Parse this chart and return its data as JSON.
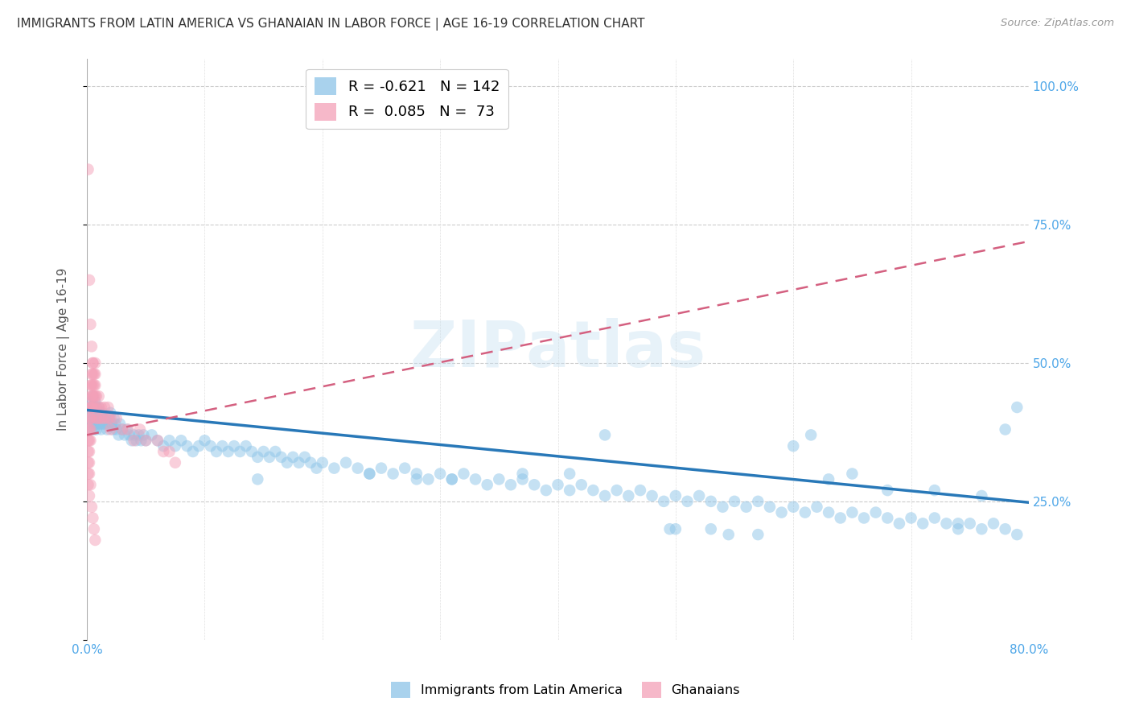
{
  "title": "IMMIGRANTS FROM LATIN AMERICA VS GHANAIAN IN LABOR FORCE | AGE 16-19 CORRELATION CHART",
  "source": "Source: ZipAtlas.com",
  "ylabel": "In Labor Force | Age 16-19",
  "xlim": [
    0.0,
    0.8
  ],
  "ylim": [
    0.0,
    1.05
  ],
  "legend1_label": "Immigrants from Latin America",
  "legend2_label": "Ghanaians",
  "legend1_R": "-0.621",
  "legend1_N": "142",
  "legend2_R": " 0.085",
  "legend2_N": " 73",
  "blue_color": "#8dc4e8",
  "pink_color": "#f4a0b8",
  "blue_line_color": "#2878b8",
  "pink_line_color": "#d46080",
  "blue_trend_x": [
    0.0,
    0.8
  ],
  "blue_trend_y": [
    0.415,
    0.248
  ],
  "pink_trend_x": [
    0.0,
    0.8
  ],
  "pink_trend_y": [
    0.37,
    0.72
  ],
  "blue_x": [
    0.002,
    0.003,
    0.003,
    0.004,
    0.004,
    0.005,
    0.005,
    0.005,
    0.006,
    0.006,
    0.007,
    0.007,
    0.007,
    0.008,
    0.008,
    0.008,
    0.009,
    0.009,
    0.01,
    0.01,
    0.011,
    0.011,
    0.012,
    0.012,
    0.013,
    0.013,
    0.014,
    0.015,
    0.016,
    0.017,
    0.018,
    0.019,
    0.02,
    0.021,
    0.022,
    0.023,
    0.024,
    0.025,
    0.027,
    0.028,
    0.03,
    0.032,
    0.034,
    0.036,
    0.038,
    0.04,
    0.042,
    0.044,
    0.046,
    0.048,
    0.05,
    0.055,
    0.06,
    0.065,
    0.07,
    0.075,
    0.08,
    0.085,
    0.09,
    0.095,
    0.1,
    0.105,
    0.11,
    0.115,
    0.12,
    0.125,
    0.13,
    0.135,
    0.14,
    0.145,
    0.15,
    0.155,
    0.16,
    0.165,
    0.17,
    0.175,
    0.18,
    0.185,
    0.19,
    0.195,
    0.2,
    0.21,
    0.22,
    0.23,
    0.24,
    0.25,
    0.26,
    0.27,
    0.28,
    0.29,
    0.3,
    0.31,
    0.32,
    0.33,
    0.34,
    0.35,
    0.36,
    0.37,
    0.38,
    0.39,
    0.4,
    0.41,
    0.42,
    0.43,
    0.44,
    0.45,
    0.46,
    0.47,
    0.48,
    0.49,
    0.5,
    0.51,
    0.52,
    0.53,
    0.54,
    0.55,
    0.56,
    0.57,
    0.58,
    0.59,
    0.6,
    0.61,
    0.62,
    0.63,
    0.64,
    0.65,
    0.66,
    0.67,
    0.68,
    0.69,
    0.7,
    0.71,
    0.72,
    0.73,
    0.74,
    0.75,
    0.76,
    0.77,
    0.78,
    0.79,
    0.495,
    0.545,
    0.615,
    0.79
  ],
  "blue_y": [
    0.42,
    0.4,
    0.38,
    0.43,
    0.41,
    0.39,
    0.44,
    0.42,
    0.4,
    0.38,
    0.43,
    0.41,
    0.39,
    0.42,
    0.4,
    0.38,
    0.41,
    0.39,
    0.42,
    0.4,
    0.41,
    0.39,
    0.4,
    0.38,
    0.41,
    0.39,
    0.4,
    0.39,
    0.4,
    0.38,
    0.39,
    0.4,
    0.41,
    0.39,
    0.38,
    0.4,
    0.39,
    0.38,
    0.37,
    0.39,
    0.38,
    0.37,
    0.38,
    0.37,
    0.36,
    0.37,
    0.36,
    0.37,
    0.36,
    0.37,
    0.36,
    0.37,
    0.36,
    0.35,
    0.36,
    0.35,
    0.36,
    0.35,
    0.34,
    0.35,
    0.36,
    0.35,
    0.34,
    0.35,
    0.34,
    0.35,
    0.34,
    0.35,
    0.34,
    0.33,
    0.34,
    0.33,
    0.34,
    0.33,
    0.32,
    0.33,
    0.32,
    0.33,
    0.32,
    0.31,
    0.32,
    0.31,
    0.32,
    0.31,
    0.3,
    0.31,
    0.3,
    0.31,
    0.3,
    0.29,
    0.3,
    0.29,
    0.3,
    0.29,
    0.28,
    0.29,
    0.28,
    0.29,
    0.28,
    0.27,
    0.28,
    0.27,
    0.28,
    0.27,
    0.26,
    0.27,
    0.26,
    0.27,
    0.26,
    0.25,
    0.26,
    0.25,
    0.26,
    0.25,
    0.24,
    0.25,
    0.24,
    0.25,
    0.24,
    0.23,
    0.24,
    0.23,
    0.24,
    0.23,
    0.22,
    0.23,
    0.22,
    0.23,
    0.22,
    0.21,
    0.22,
    0.21,
    0.22,
    0.21,
    0.2,
    0.21,
    0.2,
    0.21,
    0.2,
    0.19,
    0.2,
    0.19,
    0.37,
    0.42
  ],
  "blue_x_outliers": [
    0.145,
    0.24,
    0.28,
    0.31,
    0.37,
    0.41,
    0.44,
    0.5,
    0.53,
    0.57,
    0.6,
    0.63,
    0.65,
    0.68,
    0.72,
    0.74,
    0.76,
    0.78
  ],
  "blue_y_outliers": [
    0.29,
    0.3,
    0.29,
    0.29,
    0.3,
    0.3,
    0.37,
    0.2,
    0.2,
    0.19,
    0.35,
    0.29,
    0.3,
    0.27,
    0.27,
    0.21,
    0.26,
    0.38
  ],
  "pink_x": [
    0.001,
    0.001,
    0.001,
    0.001,
    0.001,
    0.001,
    0.002,
    0.002,
    0.002,
    0.002,
    0.002,
    0.002,
    0.002,
    0.003,
    0.003,
    0.003,
    0.003,
    0.003,
    0.003,
    0.004,
    0.004,
    0.004,
    0.004,
    0.004,
    0.005,
    0.005,
    0.005,
    0.005,
    0.005,
    0.006,
    0.006,
    0.006,
    0.006,
    0.007,
    0.007,
    0.007,
    0.007,
    0.008,
    0.008,
    0.008,
    0.01,
    0.01,
    0.01,
    0.012,
    0.012,
    0.015,
    0.015,
    0.018,
    0.018,
    0.02,
    0.02,
    0.025,
    0.03,
    0.035,
    0.04,
    0.045,
    0.05,
    0.06,
    0.065,
    0.07,
    0.075,
    0.001,
    0.002,
    0.003,
    0.004,
    0.005,
    0.003,
    0.002,
    0.004,
    0.005,
    0.006,
    0.007
  ],
  "pink_y": [
    0.38,
    0.36,
    0.34,
    0.32,
    0.3,
    0.28,
    0.42,
    0.4,
    0.38,
    0.36,
    0.34,
    0.32,
    0.3,
    0.46,
    0.44,
    0.42,
    0.4,
    0.38,
    0.36,
    0.48,
    0.46,
    0.44,
    0.42,
    0.4,
    0.5,
    0.48,
    0.46,
    0.44,
    0.42,
    0.48,
    0.46,
    0.44,
    0.42,
    0.5,
    0.48,
    0.46,
    0.44,
    0.44,
    0.42,
    0.4,
    0.44,
    0.42,
    0.4,
    0.42,
    0.4,
    0.42,
    0.4,
    0.42,
    0.4,
    0.4,
    0.38,
    0.4,
    0.38,
    0.38,
    0.36,
    0.38,
    0.36,
    0.36,
    0.34,
    0.34,
    0.32,
    0.85,
    0.65,
    0.57,
    0.53,
    0.5,
    0.28,
    0.26,
    0.24,
    0.22,
    0.2,
    0.18
  ]
}
